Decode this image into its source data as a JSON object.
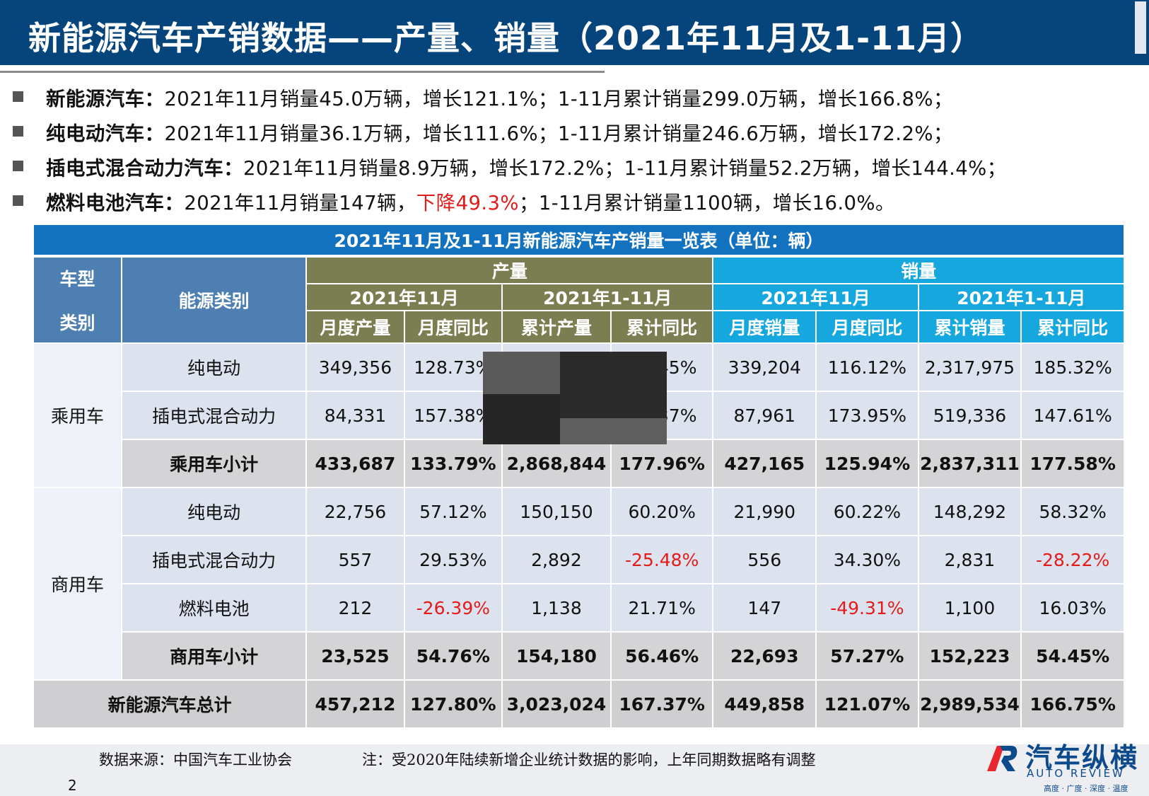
{
  "title": "新能源汽车产销数据——产量、销量（2021年11月及1-11月）",
  "bullets": [
    {
      "label": "新能源汽车：",
      "text": "2021年11月销量45.0万辆，增长121.1%；1-11月累计销量299.0万辆，增长166.8%；"
    },
    {
      "label": "纯电动汽车：",
      "text": "2021年11月销量36.1万辆，增长111.6%；1-11月累计销量246.6万辆，增长172.2%；"
    },
    {
      "label": "插电式混合动力汽车：",
      "text": "2021年11月销量8.9万辆，增长172.2%；1-11月累计销量52.2万辆，增长144.4%；"
    },
    {
      "label": "燃料电池汽车：",
      "text_before": "2021年11月销量147辆，",
      "text_red": "下降49.3%",
      "text_after": "；1-11月累计销量1100辆，增长16.0%。"
    }
  ],
  "table": {
    "caption": "2021年11月及1-11月新能源汽车产销量一览表（单位：辆）",
    "headers": {
      "vehicle_type_top": "车型",
      "vehicle_type_bottom": "类别",
      "energy": "能源类别",
      "production": "产量",
      "sales": "销量",
      "month": "2021年11月",
      "ytd": "2021年1-11月",
      "month_prod": "月度产量",
      "month_yoy": "月度同比",
      "cum_prod": "累计产量",
      "cum_yoy": "累计同比",
      "month_sales": "月度销量",
      "cum_sales": "累计销量"
    },
    "passenger": {
      "label": "乘用车",
      "rows": [
        {
          "energy": "纯电动",
          "values": [
            "349,356",
            "128.73%",
            "",
            "45%",
            "339,204",
            "116.12%",
            "2,317,975",
            "185.32%"
          ]
        },
        {
          "energy": "插电式混合动力",
          "values": [
            "84,331",
            "157.38%",
            "",
            "37%",
            "87,961",
            "173.95%",
            "519,336",
            "147.61%"
          ]
        }
      ],
      "subtotal": {
        "energy": "乘用车小计",
        "values": [
          "433,687",
          "133.79%",
          "2,868,844",
          "177.96%",
          "427,165",
          "125.94%",
          "2,837,311",
          "177.58%"
        ]
      }
    },
    "commercial": {
      "label": "商用车",
      "rows": [
        {
          "energy": "纯电动",
          "values": [
            "22,756",
            "57.12%",
            "150,150",
            "60.20%",
            "21,990",
            "60.22%",
            "148,292",
            "58.32%"
          ]
        },
        {
          "energy": "插电式混合动力",
          "values": [
            "557",
            "29.53%",
            "2,892",
            "-25.48%",
            "556",
            "34.30%",
            "2,831",
            "-28.22%"
          ]
        },
        {
          "energy": "燃料电池",
          "values": [
            "212",
            "-26.39%",
            "1,138",
            "21.71%",
            "147",
            "-49.31%",
            "1,100",
            "16.03%"
          ]
        }
      ],
      "subtotal": {
        "energy": "商用车小计",
        "values": [
          "23,525",
          "54.76%",
          "154,180",
          "56.46%",
          "22,693",
          "57.27%",
          "152,223",
          "54.45%"
        ]
      }
    },
    "total": {
      "label": "新能源汽车总计",
      "values": [
        "457,212",
        "127.80%",
        "3,023,024",
        "167.37%",
        "449,858",
        "121.07%",
        "2,989,534",
        "166.75%"
      ]
    }
  },
  "colors": {
    "title_bar": "#06457c",
    "caption": "#1372c0",
    "header_blue": "#4e7fb3",
    "header_olive": "#7b7e50",
    "header_cyan": "#16a7df",
    "negative": "#e31b1b"
  },
  "footer": {
    "source": "数据来源：中国汽车工业协会",
    "note": "注：受2020年陆续新增企业统计数据的影响，上年同期数据略有调整",
    "page": "2"
  },
  "logo": {
    "cn": "汽车纵横",
    "en": "AUTO REVIEW",
    "tagline": "高度 · 广度 · 深度 · 温度"
  }
}
